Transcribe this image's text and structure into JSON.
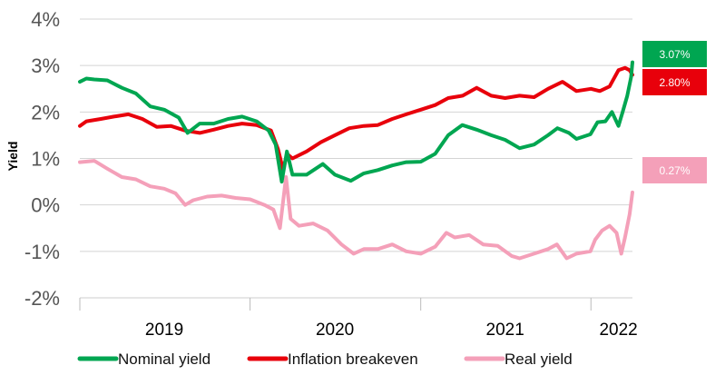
{
  "chart_data": {
    "type": "line",
    "ylabel": "Yield",
    "ylim": [
      -2,
      4
    ],
    "y_ticks": [
      {
        "value": 4,
        "label": "4%"
      },
      {
        "value": 3,
        "label": "3%"
      },
      {
        "value": 2,
        "label": "2%"
      },
      {
        "value": 1,
        "label": "1%"
      },
      {
        "value": 0,
        "label": "0%"
      },
      {
        "value": -1,
        "label": "-1%"
      },
      {
        "value": -2,
        "label": "-2%"
      }
    ],
    "x_range": [
      "2019-01-01",
      "2022-03-31"
    ],
    "x_ticks": [
      {
        "date": "2019-01-01",
        "label": ""
      },
      {
        "date": "2019-07-01",
        "label": "2019"
      },
      {
        "date": "2020-01-01",
        "label": ""
      },
      {
        "date": "2020-07-01",
        "label": "2020"
      },
      {
        "date": "2021-01-01",
        "label": ""
      },
      {
        "date": "2021-07-01",
        "label": "2021"
      },
      {
        "date": "2022-01-01",
        "label": ""
      },
      {
        "date": "2022-03-01",
        "label": "2022"
      }
    ],
    "grid": true,
    "legend_position": "bottom",
    "series": [
      {
        "name": "Nominal yield",
        "color": "#00a651",
        "end_label": "3.07%",
        "points": [
          [
            "2019-01-01",
            2.65
          ],
          [
            "2019-01-15",
            2.72
          ],
          [
            "2019-02-01",
            2.7
          ],
          [
            "2019-03-01",
            2.68
          ],
          [
            "2019-04-01",
            2.52
          ],
          [
            "2019-05-01",
            2.4
          ],
          [
            "2019-06-01",
            2.12
          ],
          [
            "2019-07-01",
            2.05
          ],
          [
            "2019-08-01",
            1.88
          ],
          [
            "2019-08-20",
            1.55
          ],
          [
            "2019-09-15",
            1.75
          ],
          [
            "2019-10-15",
            1.75
          ],
          [
            "2019-11-15",
            1.85
          ],
          [
            "2019-12-15",
            1.9
          ],
          [
            "2020-01-15",
            1.8
          ],
          [
            "2020-02-10",
            1.6
          ],
          [
            "2020-02-25",
            1.3
          ],
          [
            "2020-03-09",
            0.5
          ],
          [
            "2020-03-20",
            1.15
          ],
          [
            "2020-04-01",
            0.65
          ],
          [
            "2020-05-01",
            0.65
          ],
          [
            "2020-06-05",
            0.88
          ],
          [
            "2020-07-01",
            0.65
          ],
          [
            "2020-08-04",
            0.52
          ],
          [
            "2020-09-01",
            0.68
          ],
          [
            "2020-10-01",
            0.75
          ],
          [
            "2020-11-01",
            0.85
          ],
          [
            "2020-12-01",
            0.92
          ],
          [
            "2021-01-01",
            0.93
          ],
          [
            "2021-02-01",
            1.1
          ],
          [
            "2021-03-01",
            1.5
          ],
          [
            "2021-03-31",
            1.72
          ],
          [
            "2021-05-01",
            1.62
          ],
          [
            "2021-06-01",
            1.5
          ],
          [
            "2021-07-01",
            1.4
          ],
          [
            "2021-08-01",
            1.22
          ],
          [
            "2021-09-01",
            1.3
          ],
          [
            "2021-10-01",
            1.5
          ],
          [
            "2021-10-21",
            1.65
          ],
          [
            "2021-11-15",
            1.55
          ],
          [
            "2021-12-01",
            1.42
          ],
          [
            "2021-12-31",
            1.52
          ],
          [
            "2022-01-15",
            1.78
          ],
          [
            "2022-02-01",
            1.8
          ],
          [
            "2022-02-15",
            2.0
          ],
          [
            "2022-03-01",
            1.7
          ],
          [
            "2022-03-10",
            2.0
          ],
          [
            "2022-03-20",
            2.35
          ],
          [
            "2022-03-28",
            2.75
          ],
          [
            "2022-03-31",
            3.07
          ]
        ]
      },
      {
        "name": "Inflation breakeven",
        "color": "#e8000b",
        "end_label": "2.80%",
        "points": [
          [
            "2019-01-01",
            1.7
          ],
          [
            "2019-01-15",
            1.8
          ],
          [
            "2019-02-15",
            1.85
          ],
          [
            "2019-03-15",
            1.9
          ],
          [
            "2019-04-15",
            1.95
          ],
          [
            "2019-05-15",
            1.85
          ],
          [
            "2019-06-15",
            1.68
          ],
          [
            "2019-07-15",
            1.7
          ],
          [
            "2019-08-15",
            1.6
          ],
          [
            "2019-09-15",
            1.55
          ],
          [
            "2019-10-15",
            1.62
          ],
          [
            "2019-11-15",
            1.7
          ],
          [
            "2019-12-15",
            1.75
          ],
          [
            "2020-01-15",
            1.72
          ],
          [
            "2020-02-15",
            1.6
          ],
          [
            "2020-03-01",
            1.2
          ],
          [
            "2020-03-12",
            0.75
          ],
          [
            "2020-03-20",
            1.1
          ],
          [
            "2020-04-01",
            1.0
          ],
          [
            "2020-05-01",
            1.15
          ],
          [
            "2020-06-01",
            1.35
          ],
          [
            "2020-07-01",
            1.5
          ],
          [
            "2020-08-01",
            1.65
          ],
          [
            "2020-09-01",
            1.7
          ],
          [
            "2020-10-01",
            1.72
          ],
          [
            "2020-11-01",
            1.85
          ],
          [
            "2020-12-01",
            1.95
          ],
          [
            "2021-01-01",
            2.05
          ],
          [
            "2021-02-01",
            2.15
          ],
          [
            "2021-03-01",
            2.3
          ],
          [
            "2021-04-01",
            2.35
          ],
          [
            "2021-05-01",
            2.52
          ],
          [
            "2021-06-01",
            2.35
          ],
          [
            "2021-07-01",
            2.3
          ],
          [
            "2021-08-01",
            2.35
          ],
          [
            "2021-09-01",
            2.32
          ],
          [
            "2021-10-01",
            2.5
          ],
          [
            "2021-11-01",
            2.65
          ],
          [
            "2021-12-01",
            2.45
          ],
          [
            "2022-01-01",
            2.5
          ],
          [
            "2022-01-20",
            2.45
          ],
          [
            "2022-02-10",
            2.55
          ],
          [
            "2022-03-01",
            2.9
          ],
          [
            "2022-03-15",
            2.95
          ],
          [
            "2022-03-25",
            2.9
          ],
          [
            "2022-03-31",
            2.8
          ]
        ]
      },
      {
        "name": "Real yield",
        "color": "#f4a0b9",
        "end_label": "0.27%",
        "points": [
          [
            "2019-01-01",
            0.92
          ],
          [
            "2019-02-01",
            0.95
          ],
          [
            "2019-03-01",
            0.78
          ],
          [
            "2019-04-01",
            0.6
          ],
          [
            "2019-05-01",
            0.55
          ],
          [
            "2019-06-01",
            0.4
          ],
          [
            "2019-07-01",
            0.35
          ],
          [
            "2019-07-25",
            0.25
          ],
          [
            "2019-08-15",
            0.0
          ],
          [
            "2019-09-01",
            0.1
          ],
          [
            "2019-10-01",
            0.18
          ],
          [
            "2019-11-01",
            0.2
          ],
          [
            "2019-12-01",
            0.15
          ],
          [
            "2020-01-01",
            0.12
          ],
          [
            "2020-02-01",
            0.0
          ],
          [
            "2020-02-20",
            -0.1
          ],
          [
            "2020-03-05",
            -0.5
          ],
          [
            "2020-03-18",
            0.6
          ],
          [
            "2020-03-28",
            -0.3
          ],
          [
            "2020-04-15",
            -0.45
          ],
          [
            "2020-05-15",
            -0.4
          ],
          [
            "2020-06-15",
            -0.55
          ],
          [
            "2020-07-15",
            -0.85
          ],
          [
            "2020-08-10",
            -1.05
          ],
          [
            "2020-09-01",
            -0.95
          ],
          [
            "2020-10-01",
            -0.95
          ],
          [
            "2020-11-01",
            -0.85
          ],
          [
            "2020-12-01",
            -1.0
          ],
          [
            "2021-01-01",
            -1.05
          ],
          [
            "2021-02-01",
            -0.9
          ],
          [
            "2021-02-25",
            -0.6
          ],
          [
            "2021-03-15",
            -0.7
          ],
          [
            "2021-04-15",
            -0.65
          ],
          [
            "2021-05-15",
            -0.85
          ],
          [
            "2021-06-15",
            -0.88
          ],
          [
            "2021-07-15",
            -1.1
          ],
          [
            "2021-08-01",
            -1.15
          ],
          [
            "2021-09-01",
            -1.05
          ],
          [
            "2021-10-01",
            -0.95
          ],
          [
            "2021-10-20",
            -0.85
          ],
          [
            "2021-11-10",
            -1.15
          ],
          [
            "2021-12-01",
            -1.05
          ],
          [
            "2021-12-31",
            -1.0
          ],
          [
            "2022-01-10",
            -0.75
          ],
          [
            "2022-01-25",
            -0.55
          ],
          [
            "2022-02-10",
            -0.45
          ],
          [
            "2022-02-25",
            -0.6
          ],
          [
            "2022-03-07",
            -1.05
          ],
          [
            "2022-03-15",
            -0.7
          ],
          [
            "2022-03-25",
            -0.2
          ],
          [
            "2022-03-31",
            0.27
          ]
        ]
      }
    ]
  }
}
